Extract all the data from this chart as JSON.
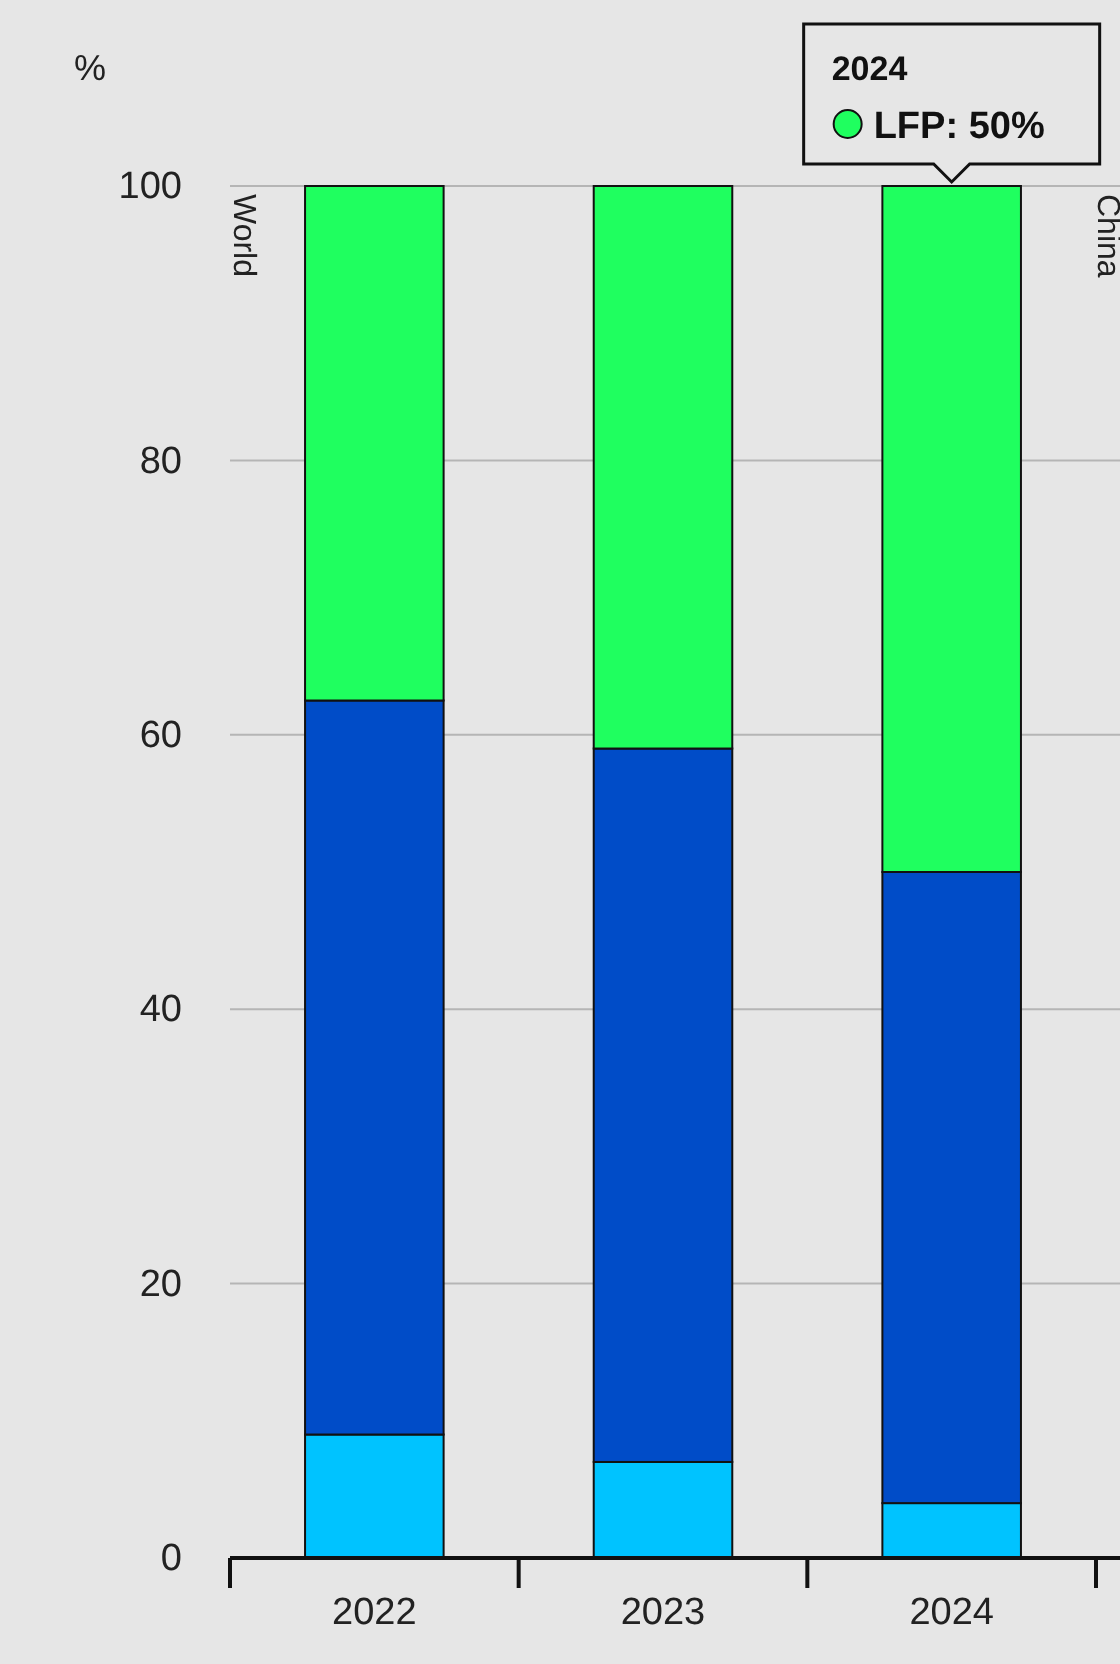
{
  "chart_data": {
    "type": "bar",
    "stacked": true,
    "ylabel": "%",
    "categories": [
      "2022",
      "2023",
      "2024"
    ],
    "series": [
      {
        "color": "#00c3ff",
        "values": [
          9,
          7,
          4
        ]
      },
      {
        "color": "#004cc8",
        "values": [
          53.5,
          52,
          46
        ]
      },
      {
        "color": "#1fff5f",
        "values": [
          37.5,
          41,
          50
        ]
      }
    ],
    "ylim": [
      0,
      100
    ],
    "yticks": [
      0,
      20,
      40,
      60,
      80,
      100
    ],
    "grid": "y",
    "annotations": [
      "World",
      "China",
      "2024",
      "LFP: 50%"
    ]
  }
}
